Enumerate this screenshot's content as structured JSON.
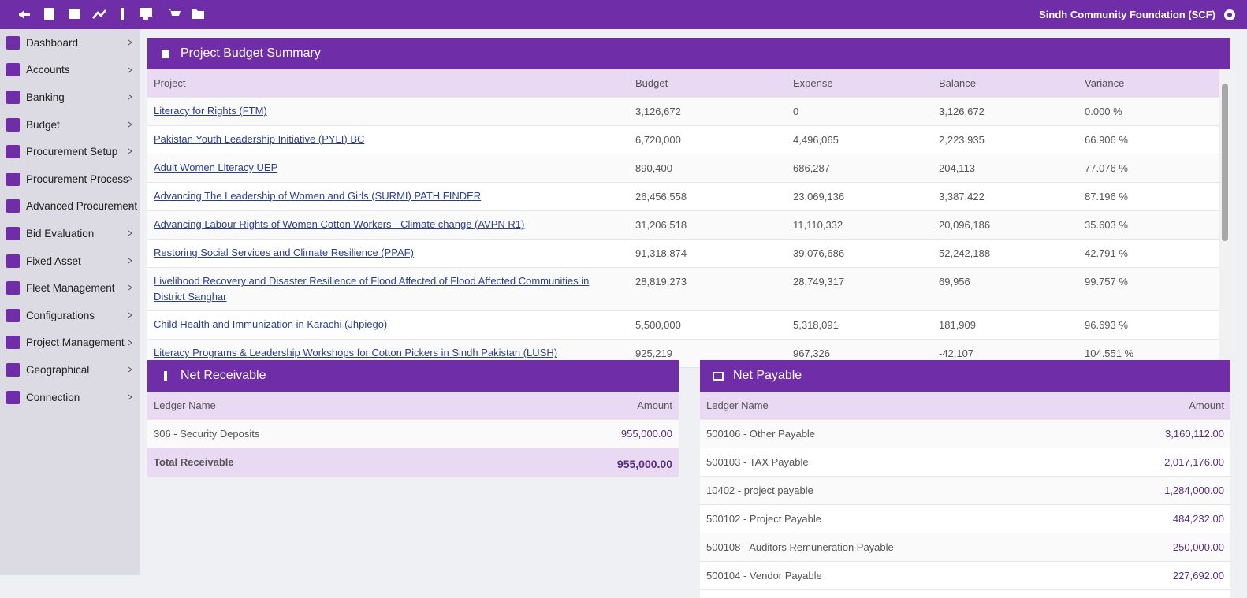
{
  "header": {
    "org": "Sindh Community Foundation (SCF)"
  },
  "sidebar": {
    "items": [
      "Dashboard",
      "Accounts",
      "Banking",
      "Budget",
      "Procurement Setup",
      "Procurement Process",
      "Advanced Procurement",
      "Bid Evaluation",
      "Fixed Asset",
      "Fleet Management",
      "Configurations",
      "Project Management",
      "Geographical",
      "Connection"
    ]
  },
  "budget": {
    "title": "Project Budget Summary",
    "columns": [
      "Project",
      "Budget",
      "Expense",
      "Balance",
      "Variance"
    ],
    "rows": [
      [
        "Literacy for Rights (FTM)",
        "3,126,672",
        "0",
        "3,126,672",
        "0.000 %"
      ],
      [
        "Pakistan Youth Leadership Initiative (PYLI) BC",
        "6,720,000",
        "4,496,065",
        "2,223,935",
        "66.906 %"
      ],
      [
        "Adult Women Literacy UEP",
        "890,400",
        "686,287",
        "204,113",
        "77.076 %"
      ],
      [
        "Advancing The Leadership of Women and Girls (SURMI) PATH FINDER",
        "26,456,558",
        "23,069,136",
        "3,387,422",
        "87.196 %"
      ],
      [
        "Advancing Labour Rights of Women Cotton Workers - Climate change (AVPN R1)",
        "31,206,518",
        "11,110,332",
        "20,096,186",
        "35.603 %"
      ],
      [
        "Restoring Social Services and Climate Resilience (PPAF)",
        "91,318,874",
        "39,076,686",
        "52,242,188",
        "42.791 %"
      ],
      [
        "Livelihood Recovery and Disaster Resilience of Flood Affected of Flood Affected Communities in District Sanghar",
        "28,819,273",
        "28,749,317",
        "69,956",
        "99.757 %"
      ],
      [
        "Child Health and Immunization in Karachi (Jhpiego)",
        "5,500,000",
        "5,318,091",
        "181,909",
        "96.693 %"
      ],
      [
        "Literacy Programs & Leadership Workshops for Cotton Pickers in Sindh Pakistan (LUSH)",
        "925,219",
        "967,326",
        "-42,107",
        "104.551 %"
      ]
    ]
  },
  "receivable": {
    "title": "Net Receivable",
    "columns": [
      "Ledger Name",
      "Amount"
    ],
    "rows": [
      [
        "306 - Security Deposits",
        "955,000.00"
      ]
    ],
    "total_label": "Total Receivable",
    "total_value": "955,000.00"
  },
  "payable": {
    "title": "Net Payable",
    "columns": [
      "Ledger Name",
      "Amount"
    ],
    "rows": [
      [
        "500106 - Other Payable",
        "3,160,112.00"
      ],
      [
        "500103 - TAX Payable",
        "2,017,176.00"
      ],
      [
        "10402 - project payable",
        "1,284,000.00"
      ],
      [
        "500102 - Project Payable",
        "484,232.00"
      ],
      [
        "500108 - Auditors Remuneration Payable",
        "250,000.00"
      ],
      [
        "500104 - Vendor Payable",
        "227,692.00"
      ]
    ]
  }
}
